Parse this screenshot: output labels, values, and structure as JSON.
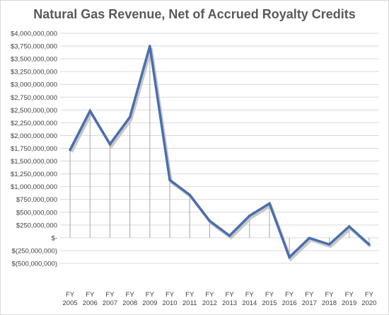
{
  "chart_data": {
    "type": "line",
    "title": "Natural Gas Revenue, Net of Accrued Royalty Credits",
    "xlabel": "",
    "ylabel": "",
    "categories": [
      "FY 2005",
      "FY 2006",
      "FY 2007",
      "FY 2008",
      "FY 2009",
      "FY 2010",
      "FY 2011",
      "FY 2012",
      "FY 2013",
      "FY 2014",
      "FY 2015",
      "FY 2016",
      "FY 2017",
      "FY 2018",
      "FY 2019",
      "FY 2020"
    ],
    "category_lines": [
      [
        "FY",
        "2005"
      ],
      [
        "FY",
        "2006"
      ],
      [
        "FY",
        "2007"
      ],
      [
        "FY",
        "2008"
      ],
      [
        "FY",
        "2009"
      ],
      [
        "FY",
        "2010"
      ],
      [
        "FY",
        "2011"
      ],
      [
        "FY",
        "2012"
      ],
      [
        "FY",
        "2013"
      ],
      [
        "FY",
        "2014"
      ],
      [
        "FY",
        "2015"
      ],
      [
        "FY",
        "2016"
      ],
      [
        "FY",
        "2017"
      ],
      [
        "FY",
        "2018"
      ],
      [
        "FY",
        "2019"
      ],
      [
        "FY",
        "2020"
      ]
    ],
    "series": [
      {
        "values": [
          1720000000,
          2480000000,
          1830000000,
          2360000000,
          3750000000,
          1130000000,
          840000000,
          330000000,
          40000000,
          430000000,
          670000000,
          -380000000,
          -5000000,
          -130000000,
          220000000,
          -130000000
        ]
      }
    ],
    "ylim": [
      -500000000,
      4000000000
    ],
    "yticks": [
      4000000000,
      3750000000,
      3500000000,
      3250000000,
      3000000000,
      2750000000,
      2500000000,
      2250000000,
      2000000000,
      1750000000,
      1500000000,
      1250000000,
      1000000000,
      750000000,
      500000000,
      250000000,
      0,
      -250000000,
      -500000000
    ],
    "ytick_labels": [
      "$4,000,000,000",
      "$3,750,000,000",
      "$3,500,000,000",
      "$3,250,000,000",
      "$3,000,000,000",
      "$2,750,000,000",
      "$2,500,000,000",
      "$2,250,000,000",
      "$2,000,000,000",
      "$1,750,000,000",
      "$1,500,000,000",
      "$1,250,000,000",
      "$1,000,000,000",
      "$750,000,000",
      "$500,000,000",
      "$250,000,000",
      "$-",
      "$(250,000,000)",
      "$(500,000,000)"
    ],
    "grid": true,
    "drop_lines": true,
    "colors": {
      "line": "#4a6fad",
      "shadow": "#c8c8c8",
      "grid": "#d9d9d9",
      "drop_line": "#a6a6a6",
      "text": "#404040",
      "title": "#595959"
    }
  }
}
